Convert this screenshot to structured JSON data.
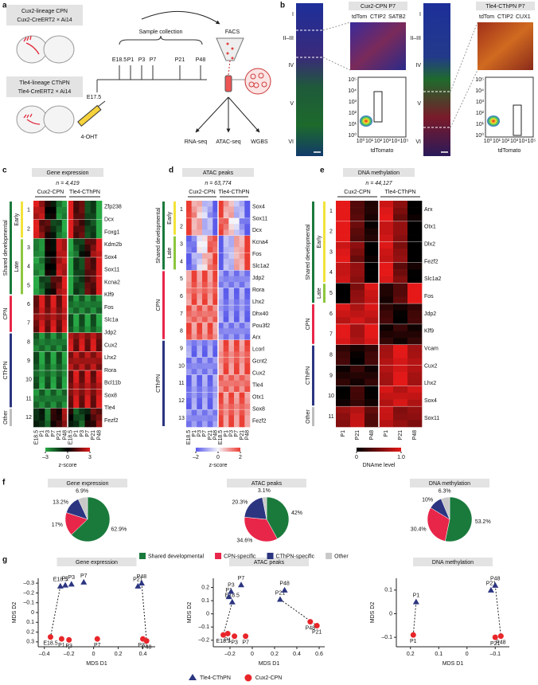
{
  "panel_a": {
    "letter": "a",
    "lineage_boxes": [
      [
        "Cux2-lineage CPN",
        "Cux2-CreERT2 × Ai14"
      ],
      [
        "Tle4-lineage CThPN",
        "Tle4-CreERT2 × Ai14"
      ]
    ],
    "collection_label": "Sample collection",
    "timepoints": [
      "E18.5",
      "P1",
      "P3",
      "P7",
      "P21",
      "P48"
    ],
    "injection_time": "E17.5",
    "drug": "4-OHT",
    "sorting": "FACS",
    "assays": [
      "RNA-seq",
      "ATAC-seq",
      "WGBS"
    ]
  },
  "panel_b": {
    "letter": "b",
    "layers": [
      "I",
      "II–III",
      "IV",
      "V",
      "VI"
    ],
    "images": [
      {
        "title": "Cux2-CPN P7",
        "stains": [
          "tdTom",
          "CTIP2",
          "SATB2"
        ]
      },
      {
        "title": "Tle4-CThPN P7",
        "stains": [
          "tdTom",
          "CTIP2",
          "CUX1"
        ]
      }
    ],
    "stain_colors": [
      "#e8262a",
      "#3ec13e",
      "#4a5ae8"
    ],
    "flow_ticks": [
      "10⁰",
      "10¹",
      "10²",
      "10³",
      "10⁴",
      "10⁵"
    ],
    "flow_xlabel": "tdTomato"
  },
  "panel_c": {
    "letter": "c",
    "title": "Gene expression",
    "n_label": "n = 4,419",
    "groups": [
      "Cux2-CPN",
      "Tle4-CThPN"
    ],
    "columns": [
      "E18.5",
      "P1",
      "P3",
      "P7",
      "P21",
      "P48"
    ],
    "categories": [
      "Shared developmental",
      "Early",
      "Late",
      "CPN",
      "CThPN",
      "Other"
    ],
    "clusters": [
      "1",
      "2",
      "3",
      "4",
      "5",
      "6",
      "7",
      "8",
      "9",
      "10",
      "11",
      "12"
    ],
    "genes": [
      "Zfp238",
      "Dcx",
      "Foxg1",
      "Kdm2b",
      "Sox4",
      "Sox11",
      "Kcna2",
      "Klf9",
      "Fos",
      "Slc1a",
      "Jdp2",
      "Cux2",
      "Lhx2",
      "Rora",
      "Bcl11b",
      "Sox8",
      "Tle4",
      "Fezf2"
    ],
    "colorbar": {
      "ticks": [
        {
          "value": -3,
          "label": "–3"
        },
        0,
        3
      ],
      "label": "z-score"
    }
  },
  "panel_d": {
    "letter": "d",
    "title": "ATAC peaks",
    "n_label": "n = 63,774",
    "groups": [
      "Cux2-CPN",
      "Tle4-CThPN"
    ],
    "columns": [
      "E18.5",
      "P1",
      "P3",
      "P7",
      "P21",
      "P48"
    ],
    "categories": [
      "Shared developmental",
      "Early",
      "Late",
      "CPN",
      "CThPN"
    ],
    "clusters": [
      "1",
      "2",
      "3",
      "4",
      "5",
      "6",
      "7",
      "8",
      "9",
      "10",
      "11",
      "12",
      "13"
    ],
    "genes": [
      "Sox4",
      "Sox11",
      "Dcx",
      "Kcna4",
      "Fos",
      "Slc1a2",
      "Jdp2",
      "Rora",
      "Lhx2",
      "Dhx40",
      "Pou3f2",
      "Arx",
      "Lcorl",
      "Gcnt2",
      "Cux2",
      "Tle4",
      "Otx1",
      "Sox8",
      "Fezf2"
    ],
    "colorbar": {
      "ticks": [
        {
          "value": -2,
          "label": "–2"
        },
        0,
        2
      ],
      "label": "z-score"
    }
  },
  "panel_e": {
    "letter": "e",
    "title": "DNA methylation",
    "n_label": "n = 44,127",
    "groups": [
      "Cux2-CPN",
      "Tle4-CThPN"
    ],
    "columns": [
      "P1",
      "P21",
      "P48"
    ],
    "categories": [
      "Shared developmental",
      "Early",
      "Late",
      "CPN",
      "CThPN",
      "Other"
    ],
    "clusters": [
      "1",
      "2",
      "3",
      "4",
      "5",
      "6",
      "7",
      "8",
      "9",
      "10",
      "11"
    ],
    "genes": [
      "Arx",
      "Otx1",
      "Dlx2",
      "Fezf2",
      "Slc1a2",
      "Fos",
      "Jdp2",
      "Klf9",
      "Vcam",
      "Cux2",
      "Lhx2",
      "Sox4",
      "Sox11"
    ],
    "colorbar": {
      "ticks": [
        0,
        {
          "value": 1,
          "label": "1.0"
        }
      ],
      "label": "DNAme level"
    }
  },
  "panel_f": {
    "letter": "f",
    "legend": {
      "labels": [
        "Shared developmental",
        "CPN-specific",
        "CThPN-specific",
        "Other"
      ],
      "colors": [
        "#1a7a3c",
        "#e8264a",
        "#2b3580",
        "#c8c8c8"
      ]
    }
  },
  "panel_g": {
    "letter": "g",
    "xlabel": "MDS D1",
    "ylabel": "MDS D2",
    "legend": [
      {
        "name": "Tle4-CThPN",
        "color": "#2b3580",
        "marker": "triangle"
      },
      {
        "name": "Cux2-CPN",
        "color": "#e8262a",
        "marker": "circle"
      }
    ]
  },
  "chart_data": [
    {
      "type": "pie",
      "title": "Gene expression",
      "values": [
        62.9,
        17,
        13.2,
        6.9
      ],
      "value_labels": [
        "62.9%",
        "17%",
        "13.2%",
        "6.9%"
      ]
    },
    {
      "type": "pie",
      "title": "ATAC peaks",
      "values": [
        42,
        34.6,
        20.3,
        3.1
      ],
      "value_labels": [
        "42%",
        "34.6%",
        "20.3%",
        "3.1%"
      ]
    },
    {
      "type": "pie",
      "title": "DNA methylation",
      "values": [
        53.2,
        30.4,
        10,
        6.3
      ],
      "value_labels": [
        "53.2%",
        "30.4%",
        "10%",
        "6.3%"
      ]
    },
    {
      "type": "scatter",
      "title": "Gene expression",
      "xlim": [
        -0.45,
        0.5
      ],
      "ylim": [
        0.35,
        -0.35
      ],
      "xticks": [
        {
          "value": -0.4,
          "label": "–0.4"
        },
        {
          "value": -0.2,
          "label": "–0.2"
        },
        0,
        0.2,
        0.4
      ],
      "yticks": [
        {
          "value": -0.3,
          "label": "–0.3"
        },
        {
          "value": -0.2,
          "label": "–0.2"
        },
        {
          "value": -0.1,
          "label": "–0.1"
        },
        0,
        0.1,
        0.2,
        0.3
      ],
      "series": [
        {
          "labels": [
            "E18.5",
            "P1",
            "P3",
            "P7",
            "P21",
            "P48"
          ],
          "x": [
            -0.27,
            -0.23,
            -0.18,
            -0.08,
            0.36,
            0.39
          ],
          "y": [
            -0.27,
            -0.28,
            -0.29,
            -0.31,
            -0.27,
            -0.3
          ]
        },
        {
          "labels": [
            "E18.5",
            "P1",
            "P3",
            "P7",
            "P21",
            "P48"
          ],
          "x": [
            -0.35,
            -0.26,
            -0.2,
            0.03,
            0.4,
            0.43
          ],
          "y": [
            0.25,
            0.27,
            0.28,
            0.27,
            0.27,
            0.29
          ]
        }
      ]
    },
    {
      "type": "scatter",
      "title": "ATAC peaks",
      "xlim": [
        -0.35,
        0.65
      ],
      "ylim": [
        -0.25,
        0.27
      ],
      "xticks": [
        {
          "value": -0.2,
          "label": "–0.2"
        },
        0,
        0.2,
        0.4,
        0.6
      ],
      "yticks": [
        {
          "value": -0.2,
          "label": "–0.2"
        },
        {
          "value": -0.1,
          "label": "–0.1"
        },
        0,
        0.1,
        0.2
      ],
      "series": [
        {
          "labels": [
            "E18.5",
            "P1",
            "P3",
            "P7",
            "P21",
            "P48"
          ],
          "x": [
            -0.18,
            -0.21,
            -0.19,
            -0.1,
            0.25,
            0.29
          ],
          "y": [
            0.09,
            0.13,
            0.17,
            0.22,
            0.11,
            0.18
          ]
        },
        {
          "labels": [
            "E18.5",
            "P1",
            "P3",
            "P7",
            "P21",
            "P48"
          ],
          "x": [
            -0.26,
            -0.22,
            -0.16,
            -0.06,
            0.58,
            0.52
          ],
          "y": [
            -0.16,
            -0.15,
            -0.17,
            -0.17,
            -0.09,
            -0.06
          ]
        }
      ]
    },
    {
      "type": "scatter",
      "title": "DNA methylation",
      "xlim": [
        0.25,
        -0.15
      ],
      "ylim": [
        -0.14,
        0.15
      ],
      "xticks": [
        0.2,
        0.1,
        0,
        {
          "value": -0.1,
          "label": "–0.1"
        }
      ],
      "yticks": [
        {
          "value": -0.1,
          "label": "–0.1"
        },
        0,
        0.1
      ],
      "series": [
        {
          "labels": [
            "P1",
            "P21",
            "P48"
          ],
          "x": [
            0.18,
            -0.085,
            -0.1
          ],
          "y": [
            0.05,
            0.1,
            0.12
          ]
        },
        {
          "labels": [
            "P1",
            "P21",
            "P48"
          ],
          "x": [
            0.19,
            -0.1,
            -0.12
          ],
          "y": [
            -0.09,
            -0.1,
            -0.095
          ]
        }
      ]
    }
  ]
}
